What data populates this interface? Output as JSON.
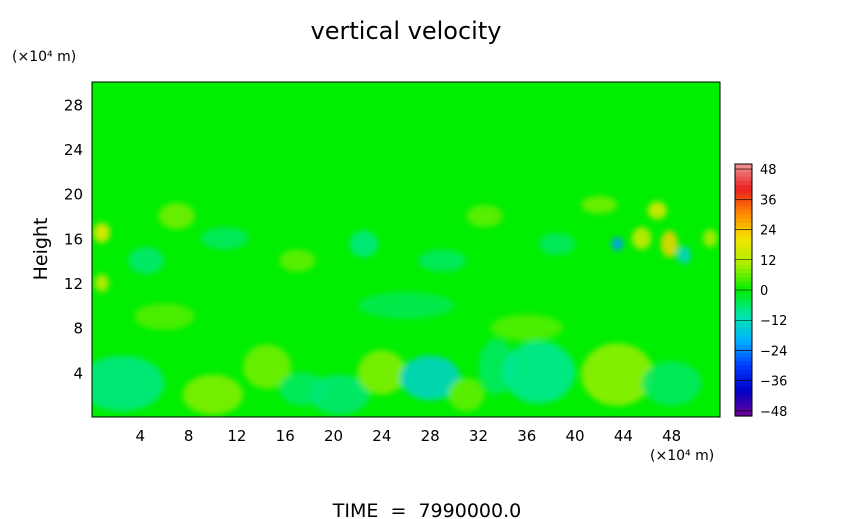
{
  "chart_data": {
    "type": "heatmap",
    "title": "vertical velocity",
    "ylabel": "Height",
    "x_unit": "(×10⁴ m)",
    "y_unit": "(×10⁴ m)",
    "footer": "TIME  =  7990000.0",
    "xlim": [
      0,
      52
    ],
    "ylim": [
      0,
      30
    ],
    "x_ticks": [
      4,
      8,
      12,
      16,
      20,
      24,
      28,
      32,
      36,
      40,
      44,
      48
    ],
    "y_ticks": [
      4,
      8,
      12,
      16,
      20,
      24,
      28
    ],
    "colorbar": {
      "ticks": [
        48,
        36,
        24,
        12,
        0,
        -12,
        -24,
        -36,
        -48
      ],
      "vmin": -50,
      "vmax": 50
    },
    "background_color": "#00ee00",
    "regions": [
      {
        "x": 2.5,
        "y": 3.0,
        "rx": 3.5,
        "ry": 2.5,
        "value": -8
      },
      {
        "x": 10.0,
        "y": 2.0,
        "rx": 2.5,
        "ry": 1.8,
        "value": 8
      },
      {
        "x": 14.5,
        "y": 4.5,
        "rx": 2.0,
        "ry": 2.0,
        "value": 7
      },
      {
        "x": 17.5,
        "y": 2.5,
        "rx": 2.0,
        "ry": 1.5,
        "value": -6
      },
      {
        "x": 20.5,
        "y": 2.0,
        "rx": 2.5,
        "ry": 1.8,
        "value": -7
      },
      {
        "x": 24.0,
        "y": 4.0,
        "rx": 2.0,
        "ry": 2.0,
        "value": 8
      },
      {
        "x": 28.0,
        "y": 3.5,
        "rx": 2.5,
        "ry": 2.0,
        "value": -14
      },
      {
        "x": 31.0,
        "y": 2.0,
        "rx": 1.5,
        "ry": 1.5,
        "value": 6
      },
      {
        "x": 33.5,
        "y": 4.5,
        "rx": 1.5,
        "ry": 2.5,
        "value": -6
      },
      {
        "x": 37.0,
        "y": 4.0,
        "rx": 3.0,
        "ry": 2.8,
        "value": -9
      },
      {
        "x": 43.5,
        "y": 3.8,
        "rx": 3.0,
        "ry": 2.8,
        "value": 9
      },
      {
        "x": 48.0,
        "y": 3.0,
        "rx": 2.5,
        "ry": 2.0,
        "value": -6
      },
      {
        "x": 0.8,
        "y": 16.5,
        "rx": 0.7,
        "ry": 0.9,
        "value": 20
      },
      {
        "x": 4.5,
        "y": 14.0,
        "rx": 1.5,
        "ry": 1.2,
        "value": -7
      },
      {
        "x": 7.0,
        "y": 18.0,
        "rx": 1.5,
        "ry": 1.2,
        "value": 7
      },
      {
        "x": 11.0,
        "y": 16.0,
        "rx": 2.0,
        "ry": 1.0,
        "value": -6
      },
      {
        "x": 17.0,
        "y": 14.0,
        "rx": 1.5,
        "ry": 1.0,
        "value": 6
      },
      {
        "x": 22.5,
        "y": 15.5,
        "rx": 1.2,
        "ry": 1.2,
        "value": -8
      },
      {
        "x": 29.0,
        "y": 14.0,
        "rx": 2.0,
        "ry": 1.0,
        "value": -6
      },
      {
        "x": 32.5,
        "y": 18.0,
        "rx": 1.5,
        "ry": 1.0,
        "value": 6
      },
      {
        "x": 38.5,
        "y": 15.5,
        "rx": 1.5,
        "ry": 1.0,
        "value": -6
      },
      {
        "x": 42.0,
        "y": 19.0,
        "rx": 1.5,
        "ry": 0.8,
        "value": 7
      },
      {
        "x": 43.5,
        "y": 15.5,
        "rx": 0.5,
        "ry": 0.6,
        "value": -22
      },
      {
        "x": 45.5,
        "y": 16.0,
        "rx": 0.8,
        "ry": 1.0,
        "value": 16
      },
      {
        "x": 46.8,
        "y": 18.5,
        "rx": 0.8,
        "ry": 0.8,
        "value": 18
      },
      {
        "x": 47.8,
        "y": 15.5,
        "rx": 0.7,
        "ry": 1.2,
        "value": 22
      },
      {
        "x": 49.0,
        "y": 14.5,
        "rx": 0.6,
        "ry": 0.8,
        "value": -14
      },
      {
        "x": 51.2,
        "y": 16.0,
        "rx": 0.6,
        "ry": 0.8,
        "value": 12
      },
      {
        "x": 26.0,
        "y": 10.0,
        "rx": 4.0,
        "ry": 1.2,
        "value": -5
      },
      {
        "x": 36.0,
        "y": 8.0,
        "rx": 3.0,
        "ry": 1.2,
        "value": 5
      },
      {
        "x": 6.0,
        "y": 9.0,
        "rx": 2.5,
        "ry": 1.2,
        "value": 5
      },
      {
        "x": 0.8,
        "y": 12.0,
        "rx": 0.6,
        "ry": 0.8,
        "value": 14
      }
    ]
  }
}
